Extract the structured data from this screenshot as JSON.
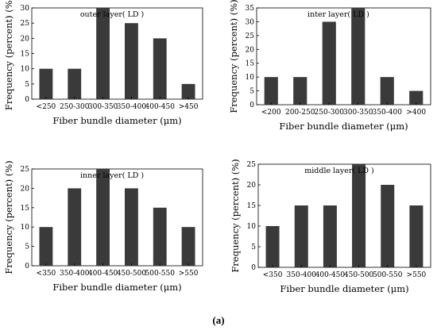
{
  "caption": "(a)",
  "chart_data": [
    {
      "type": "bar",
      "title": "outer layer( LD )",
      "xlabel": "Fiber bundle diameter (μm)",
      "ylabel": "Frequency (percent) (%)",
      "categories": [
        "<250",
        "250-300",
        "300-350",
        "350-400",
        "400-450",
        ">450"
      ],
      "values": [
        10,
        10,
        30,
        25,
        20,
        5
      ],
      "ylim": [
        0,
        30
      ],
      "yticks": [
        0,
        5,
        10,
        15,
        20,
        25,
        30
      ],
      "bar_color": "#3a3a3a"
    },
    {
      "type": "bar",
      "title": "inter layer( LD )",
      "xlabel": "Fiber bundle diameter (μm)",
      "ylabel": "Frequency (percent) (%)",
      "categories": [
        "<200",
        "200-250",
        "250-300",
        "300-350",
        "350-400",
        ">400"
      ],
      "values": [
        10,
        10,
        30,
        35,
        10,
        5
      ],
      "ylim": [
        0,
        35
      ],
      "yticks": [
        0,
        5,
        10,
        15,
        20,
        25,
        30,
        35
      ],
      "bar_color": "#3a3a3a"
    },
    {
      "type": "bar",
      "title": "inner layer( LD )",
      "xlabel": "Fiber bundle diameter (μm)",
      "ylabel": "Frequency (percent) (%)",
      "categories": [
        "<350",
        "350-400",
        "400-450",
        "450-500",
        "500-550",
        ">550"
      ],
      "values": [
        10,
        20,
        25,
        20,
        15,
        10
      ],
      "ylim": [
        0,
        25
      ],
      "yticks": [
        0,
        5,
        10,
        15,
        20,
        25
      ],
      "bar_color": "#3a3a3a"
    },
    {
      "type": "bar",
      "title": "middle layer( LD )",
      "xlabel": "Fiber bundle diameter (μm)",
      "ylabel": "Frequency (percent) (%)",
      "categories": [
        "<350",
        "350-400",
        "400-450",
        "450-500",
        "500-550",
        ">550"
      ],
      "values": [
        10,
        15,
        15,
        25,
        20,
        15
      ],
      "ylim": [
        0,
        25
      ],
      "yticks": [
        0,
        5,
        10,
        15,
        20,
        25
      ],
      "bar_color": "#3a3a3a"
    }
  ]
}
